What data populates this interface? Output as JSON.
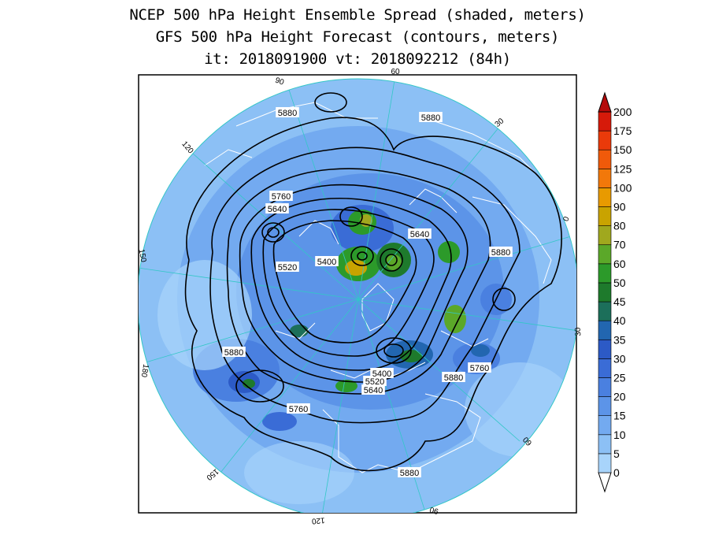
{
  "title": {
    "line1": "NCEP 500 hPa Height Ensemble Spread (shaded, meters)",
    "line2": "GFS 500 hPa Height Forecast (contours, meters)",
    "line3": "it: 2018091900       vt: 2018092212 (84h)"
  },
  "longitude_labels": [
    "60",
    "30",
    "0",
    "30",
    "60",
    "90",
    "120",
    "150",
    "180",
    "150",
    "120",
    "90"
  ],
  "contour_labels": [
    "5880",
    "5880",
    "5760",
    "5640",
    "5640",
    "5520",
    "5400",
    "5880",
    "5880",
    "5760",
    "5880",
    "5760",
    "5520",
    "5400",
    "5640",
    "5880",
    "5880"
  ],
  "colorbar": {
    "levels": [
      "0",
      "5",
      "10",
      "15",
      "20",
      "25",
      "30",
      "35",
      "40",
      "45",
      "50",
      "60",
      "70",
      "80",
      "90",
      "100",
      "125",
      "150",
      "175",
      "200"
    ],
    "colors": [
      "#a8d4fb",
      "#8cc0f5",
      "#73aaf0",
      "#5c94e8",
      "#4a80e0",
      "#3a6cd6",
      "#2c5ac6",
      "#2266b0",
      "#1c6f5a",
      "#1e7a2c",
      "#2c9a2a",
      "#5ba829",
      "#a0a81e",
      "#c9a300",
      "#e89a00",
      "#f2780a",
      "#f05a0a",
      "#ea3a0a",
      "#d61a0a",
      "#b50a0a"
    ]
  }
}
